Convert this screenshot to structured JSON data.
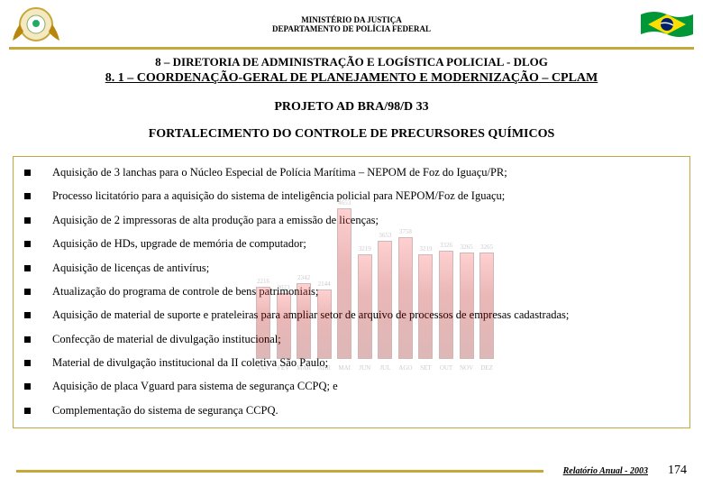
{
  "header": {
    "line1": "MINISTÉRIO DA JUSTIÇA",
    "line2": "DEPARTAMENTO DE POLÍCIA FEDERAL"
  },
  "titles": {
    "t1": "8 – DIRETORIA DE ADMINISTRAÇÃO E LOGÍSTICA POLICIAL - DLOG",
    "t2": "8. 1 – COORDENAÇÃO-GERAL DE PLANEJAMENTO E MODERNIZAÇÃO – CPLAM",
    "t3": "PROJETO AD BRA/98/D 33",
    "t4": "FORTALECIMENTO DO CONTROLE DE PRECURSORES QUÍMICOS"
  },
  "bullets": [
    "Aquisição de 3 lanchas para o Núcleo Especial de Polícia Marítima – NEPOM de Foz do Iguaçu/PR;",
    "Processo licitatório para a aquisição do sistema de inteligência policial para NEPOM/Foz de Iguaçu;",
    "Aquisição de 2 impressoras de alta produção para a emissão de licenças;",
    "Aquisição de HDs, upgrade de memória de computador;",
    "Aquisição de licenças de antivírus;",
    "Atualização do programa de controle de bens patrimoniais;",
    "Aquisição de material de suporte e prateleiras para ampliar setor de arquivo de processos de empresas cadastradas;",
    "Confecção de material de divulgação institucional;",
    "Material de divulgação institucional da II coletiva São Paulo;",
    "Aquisição de placa Vguard para sistema de segurança CCPQ; e",
    "Complementação do sistema de segurança CCPQ."
  ],
  "chart": {
    "months": [
      "JAN",
      "FEV",
      "MAR",
      "ABR",
      "MAI",
      "JUN",
      "JUL",
      "AGO",
      "SET",
      "OUT",
      "NOV",
      "DEZ"
    ],
    "values": [
      2216,
      2023,
      2342,
      2144,
      4653,
      3219,
      3653,
      3758,
      3219,
      3326,
      3265,
      3265
    ],
    "ymax": 4500,
    "ystep": 500,
    "bar_color": "#b80000",
    "bg": "#ffffff"
  },
  "footer": {
    "label": "Relatório Anual - 2003",
    "page": "174"
  },
  "colors": {
    "gold": "#c5a838"
  }
}
